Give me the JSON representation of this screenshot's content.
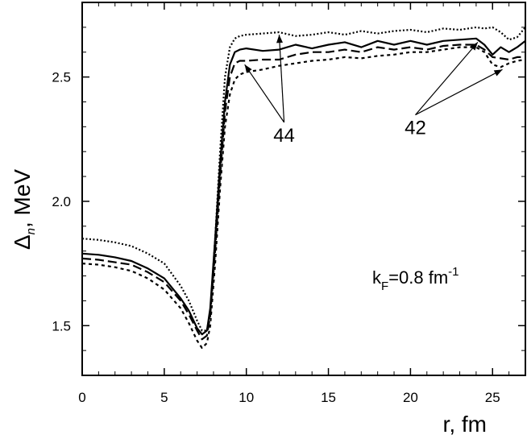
{
  "chart_data": {
    "type": "line",
    "xlabel": "r, fm",
    "ylabel": {
      "main": "Δ",
      "sub": "n",
      "rest": ", MeV"
    },
    "xlim": [
      0,
      27
    ],
    "ylim": [
      1.3,
      2.8
    ],
    "xticks": [
      0,
      5,
      10,
      15,
      20,
      25
    ],
    "xtick_labels": [
      "0",
      "5",
      "10",
      "15",
      "20",
      "25"
    ],
    "yticks": [
      1.5,
      2.0,
      2.5
    ],
    "ytick_labels": [
      "1.5",
      "2.0",
      "2.5"
    ],
    "grid": false,
    "legend": "none",
    "annotation": {
      "prefix": "k",
      "sub": "F",
      "mid": "=0.8 fm",
      "sup": "-1"
    },
    "labels": [
      {
        "text": "44",
        "x": 12.3,
        "y": 2.24,
        "arrows": [
          [
            9.9,
            2.55
          ],
          [
            12.0,
            2.67
          ]
        ]
      },
      {
        "text": "42",
        "x": 20.3,
        "y": 2.27,
        "arrows": [
          [
            24.1,
            2.64
          ],
          [
            25.6,
            2.53
          ]
        ]
      }
    ],
    "series": [
      {
        "style": "solid",
        "x": [
          0,
          1,
          2,
          3,
          4,
          5,
          6,
          6.5,
          7,
          7.3,
          7.6,
          7.8,
          8.1,
          8.4,
          8.7,
          9.0,
          9.3,
          9.6,
          10,
          11,
          12,
          13,
          14,
          15,
          16,
          17,
          18,
          19,
          20,
          21,
          22,
          23,
          24,
          24.5,
          25,
          25.5,
          26,
          26.5,
          27
        ],
        "y": [
          1.79,
          1.785,
          1.775,
          1.76,
          1.73,
          1.69,
          1.61,
          1.56,
          1.49,
          1.465,
          1.48,
          1.57,
          1.85,
          2.15,
          2.4,
          2.55,
          2.6,
          2.61,
          2.615,
          2.605,
          2.61,
          2.63,
          2.615,
          2.63,
          2.64,
          2.62,
          2.645,
          2.63,
          2.645,
          2.63,
          2.645,
          2.65,
          2.655,
          2.63,
          2.59,
          2.62,
          2.6,
          2.62,
          2.645
        ]
      },
      {
        "style": "long-dash",
        "x": [
          0,
          1,
          2,
          3,
          4,
          5,
          6,
          6.5,
          7,
          7.3,
          7.6,
          7.8,
          8.1,
          8.4,
          8.7,
          9.0,
          9.3,
          9.6,
          10,
          11,
          12,
          13,
          14,
          15,
          16,
          17,
          18,
          19,
          20,
          21,
          22,
          23,
          24,
          24.5,
          25,
          25.5,
          26,
          26.5,
          27
        ],
        "y": [
          1.77,
          1.765,
          1.755,
          1.745,
          1.715,
          1.675,
          1.6,
          1.545,
          1.48,
          1.445,
          1.46,
          1.54,
          1.8,
          2.1,
          2.36,
          2.5,
          2.555,
          2.565,
          2.565,
          2.57,
          2.57,
          2.59,
          2.6,
          2.6,
          2.61,
          2.6,
          2.62,
          2.61,
          2.62,
          2.61,
          2.625,
          2.63,
          2.63,
          2.61,
          2.58,
          2.575,
          2.57,
          2.58,
          2.58
        ]
      },
      {
        "style": "dotted",
        "x": [
          0,
          1,
          2,
          3,
          4,
          5,
          6,
          6.5,
          7,
          7.3,
          7.6,
          7.8,
          8.1,
          8.4,
          8.7,
          9.0,
          9.3,
          9.6,
          10,
          11,
          12,
          13,
          14,
          15,
          16,
          17,
          18,
          19,
          20,
          21,
          22,
          23,
          24,
          24.5,
          25,
          25.5,
          26,
          26.5,
          27
        ],
        "y": [
          1.85,
          1.845,
          1.835,
          1.82,
          1.79,
          1.75,
          1.66,
          1.6,
          1.52,
          1.48,
          1.48,
          1.55,
          1.85,
          2.2,
          2.5,
          2.62,
          2.655,
          2.665,
          2.67,
          2.675,
          2.68,
          2.665,
          2.67,
          2.68,
          2.67,
          2.685,
          2.675,
          2.685,
          2.69,
          2.68,
          2.695,
          2.69,
          2.7,
          2.695,
          2.7,
          2.68,
          2.65,
          2.66,
          2.7
        ]
      },
      {
        "style": "short-dash",
        "x": [
          0,
          1,
          2,
          3,
          4,
          5,
          6,
          6.5,
          7,
          7.3,
          7.6,
          7.8,
          8.1,
          8.4,
          8.7,
          9.0,
          9.3,
          9.6,
          10,
          11,
          12,
          13,
          14,
          15,
          16,
          17,
          18,
          19,
          20,
          21,
          22,
          23,
          24,
          24.5,
          25,
          25.5,
          26,
          26.5,
          27
        ],
        "y": [
          1.75,
          1.745,
          1.735,
          1.72,
          1.69,
          1.645,
          1.57,
          1.51,
          1.44,
          1.41,
          1.43,
          1.5,
          1.75,
          2.05,
          2.3,
          2.43,
          2.49,
          2.51,
          2.52,
          2.53,
          2.545,
          2.555,
          2.565,
          2.57,
          2.58,
          2.575,
          2.585,
          2.59,
          2.6,
          2.6,
          2.61,
          2.62,
          2.62,
          2.6,
          2.55,
          2.54,
          2.555,
          2.565,
          2.57
        ]
      }
    ]
  }
}
